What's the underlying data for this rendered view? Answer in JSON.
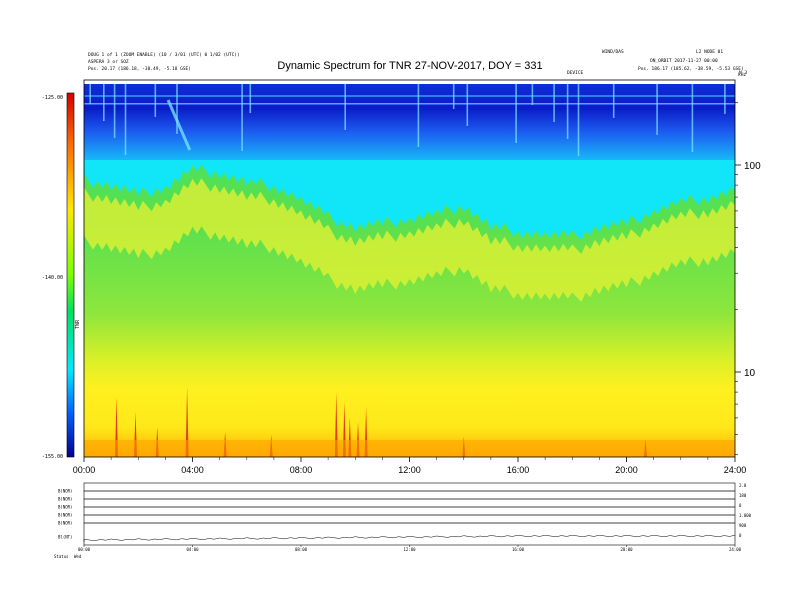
{
  "chart_data": {
    "type": "heatmap",
    "title": "Dynamic Spectrum for TNR 27-NOV-2017, DOY = 331",
    "header_left": [
      "DOUG 1 of 1 (ZOOM ENABLE) (10 / 3/01 (UTC) 0 1/02 (UTC))",
      "ASPERA 3 or SOZ",
      "Pos.   20.17 (186.18, -38.49, -5.18 GSE)"
    ],
    "header_right": [
      "WIND/DAS",
      "L2 NODE 01",
      "ON_ORBIT 2017-11-27 00:00",
      "Pos.  186.17 (185.62, -38.59, -5.53 GSE)"
    ],
    "header_center": "DEVICE",
    "header_corner": "N 3",
    "y_axis_right_ticks": [
      "100",
      "10"
    ],
    "y_axis_right_top_label": "kHz",
    "x_ticks": [
      "00:00",
      "04:00",
      "08:00",
      "12:00",
      "16:00",
      "20:00",
      "24:00"
    ],
    "colorbar": {
      "ticks": [
        "-125.00",
        "-140.00",
        "-155.00"
      ],
      "label": "TNR",
      "range": [
        -155,
        -125
      ]
    },
    "spectrum_profile": {
      "hours": [
        0,
        1,
        2,
        3,
        4,
        5,
        6,
        7,
        8,
        9,
        10,
        11,
        12,
        13,
        14,
        15,
        16,
        17,
        18,
        19,
        20,
        21,
        22,
        23,
        24
      ],
      "cyan_boundary_khz": [
        85,
        80,
        72,
        78,
        95,
        92,
        82,
        80,
        68,
        56,
        50,
        52,
        55,
        58,
        64,
        50,
        48,
        46,
        45,
        50,
        52,
        60,
        66,
        70,
        75
      ]
    },
    "lower_panel_labels": [
      "B(NOR)",
      "B(NOR)",
      "B(NOR)",
      "B(NOR)",
      "B(NOR)",
      "Bl(NT)"
    ],
    "lower_panel_right_ticks": [
      "2.0",
      "180",
      "0",
      "1.000",
      "900",
      "0"
    ],
    "lower_x_ticks": [
      "00:00",
      "04:00",
      "08:00",
      "12:00",
      "16:00",
      "20:00",
      "24:00"
    ],
    "footer_left": [
      "Status",
      "Wed"
    ]
  }
}
